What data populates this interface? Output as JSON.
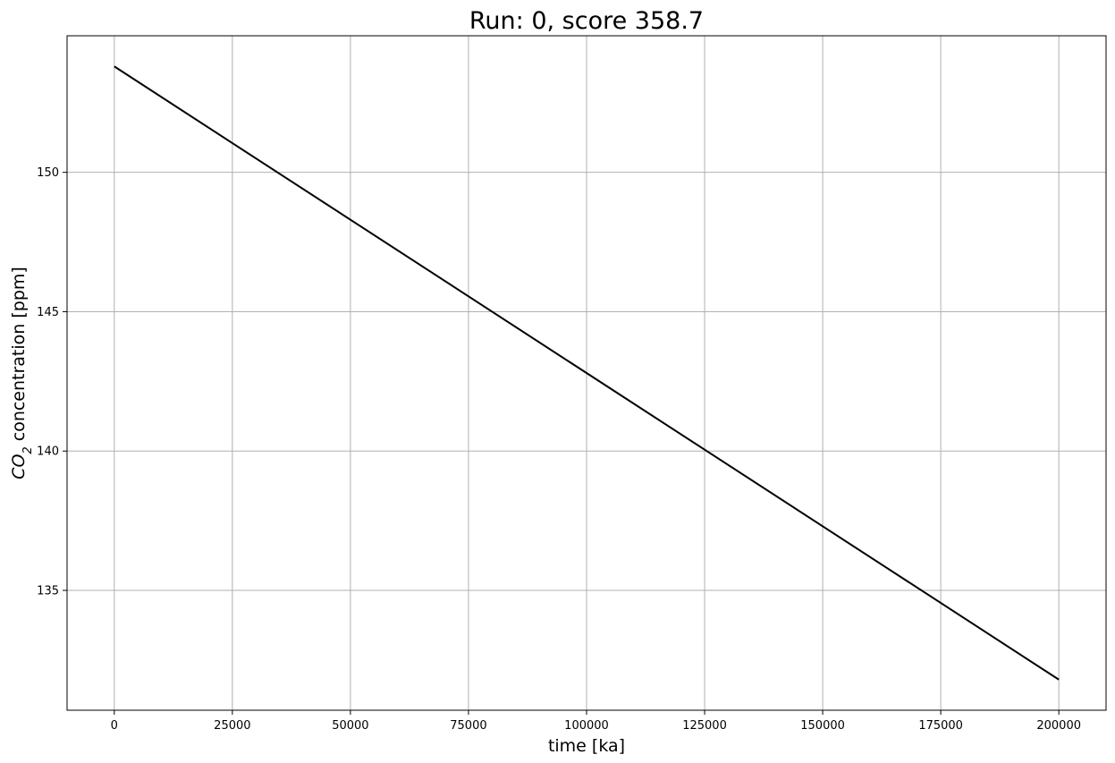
{
  "chart_data": {
    "type": "line",
    "title": "Run: 0, score 358.7",
    "xlabel": "time [ka]",
    "ylabel_parts": {
      "base": "CO",
      "sub": "2",
      "rest": " concentration [ppm]"
    },
    "xlim": [
      -10000,
      210000
    ],
    "ylim": [
      130.7,
      154.9
    ],
    "xticks": [
      0,
      25000,
      50000,
      75000,
      100000,
      125000,
      150000,
      175000,
      200000
    ],
    "yticks": [
      135,
      140,
      145,
      150
    ],
    "grid": true,
    "series": [
      {
        "color": "#000000",
        "x": [
          0,
          200000
        ],
        "y": [
          153.8,
          131.8
        ]
      }
    ]
  }
}
